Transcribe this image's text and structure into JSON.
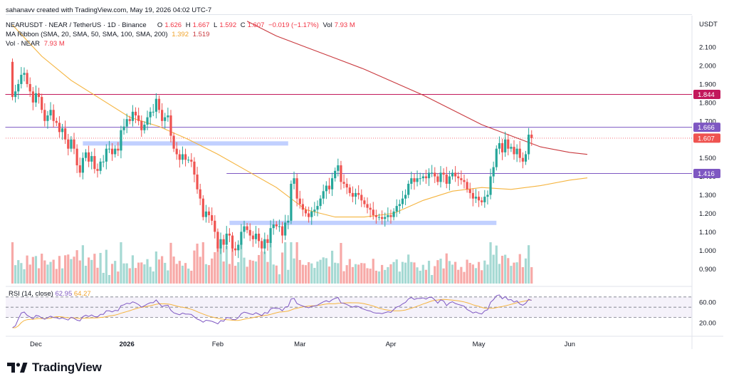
{
  "header": {
    "credit": "sahanavv created with TradingView.com, May 19, 2026 04:02 UTC-7",
    "symbol": "NEARUSDT · NEAR / TetherUS · 1D · Binance",
    "o_label": "O",
    "o": "1.626",
    "h_label": "H",
    "h": "1.667",
    "l_label": "L",
    "l": "1.592",
    "c_label": "C",
    "c": "1.607",
    "change": "−0.019 (−1.17%)",
    "vol_label": "Vol",
    "vol": "7.93 M",
    "ma_label": "MA Ribbon (SMA, 20, SMA, 50, SMA, 100, SMA, 200)",
    "ma1": "1.392",
    "ma2": "1.519",
    "volume_label": "Vol · NEAR",
    "volume_value": "7.93 M"
  },
  "rsi": {
    "label": "RSI (14, close)",
    "value": "62.95",
    "ma_value": "64.27",
    "levels": [
      70,
      50,
      30
    ],
    "range": [
      10,
      85
    ]
  },
  "footer": {
    "brand": "TradingView"
  },
  "colors": {
    "up": "#26a69a",
    "down": "#ef5350",
    "up_vol": "#a5d9d3",
    "down_vol": "#f7a9a7",
    "sma_fast": "#f5b43f",
    "sma_slow": "#c9393e",
    "resistance": "#c2185b",
    "level": "#7e57c2",
    "zone": "#b6c8ff",
    "rsi": "#7e57c2",
    "rsi_ma": "#f5b43f"
  },
  "chart_data": {
    "type": "candlestick",
    "title": "NEARUSDT · NEAR / TetherUS · 1D · Binance",
    "y_unit": "USDT",
    "ylim": [
      0.82,
      2.27
    ],
    "y_ticks": [
      "2.100",
      "2.000",
      "1.900",
      "1.800",
      "1.700",
      "1.600",
      "1.500",
      "1.400",
      "1.300",
      "1.200",
      "1.100",
      "1.000",
      "0.900"
    ],
    "x_ticks": [
      {
        "label": "Dec",
        "index": 8
      },
      {
        "label": "2026",
        "index": 39
      },
      {
        "label": "Feb",
        "index": 70
      },
      {
        "label": "Mar",
        "index": 98
      },
      {
        "label": "Apr",
        "index": 129
      },
      {
        "label": "May",
        "index": 159
      },
      {
        "label": "Jun",
        "index": 190
      }
    ],
    "start_price": 2.02,
    "closes": [
      1.83,
      1.86,
      1.9,
      1.95,
      1.96,
      1.9,
      1.86,
      1.8,
      1.85,
      1.83,
      1.76,
      1.7,
      1.73,
      1.76,
      1.7,
      1.69,
      1.64,
      1.66,
      1.6,
      1.55,
      1.6,
      1.55,
      1.46,
      1.42,
      1.5,
      1.53,
      1.48,
      1.51,
      1.44,
      1.43,
      1.48,
      1.48,
      1.55,
      1.55,
      1.52,
      1.55,
      1.54,
      1.65,
      1.67,
      1.71,
      1.7,
      1.75,
      1.73,
      1.7,
      1.65,
      1.68,
      1.72,
      1.75,
      1.75,
      1.82,
      1.76,
      1.7,
      1.72,
      1.73,
      1.62,
      1.55,
      1.52,
      1.49,
      1.52,
      1.49,
      1.49,
      1.48,
      1.41,
      1.33,
      1.28,
      1.18,
      1.21,
      1.19,
      1.16,
      1.1,
      1.01,
      1.06,
      1.03,
      1.09,
      1.08,
      1.01,
      1.0,
      1.03,
      1.1,
      1.13,
      1.11,
      1.08,
      1.06,
      1.09,
      1.05,
      1.01,
      1.06,
      1.04,
      1.12,
      1.14,
      1.13,
      1.13,
      1.08,
      1.15,
      1.16,
      1.36,
      1.39,
      1.28,
      1.25,
      1.22,
      1.2,
      1.18,
      1.21,
      1.22,
      1.24,
      1.28,
      1.32,
      1.35,
      1.33,
      1.39,
      1.43,
      1.46,
      1.37,
      1.36,
      1.34,
      1.31,
      1.29,
      1.31,
      1.3,
      1.27,
      1.25,
      1.23,
      1.22,
      1.19,
      1.18,
      1.18,
      1.17,
      1.18,
      1.19,
      1.18,
      1.21,
      1.24,
      1.25,
      1.28,
      1.3,
      1.36,
      1.39,
      1.37,
      1.39,
      1.39,
      1.4,
      1.39,
      1.42,
      1.42,
      1.4,
      1.37,
      1.42,
      1.41,
      1.36,
      1.4,
      1.42,
      1.4,
      1.39,
      1.38,
      1.37,
      1.33,
      1.31,
      1.28,
      1.29,
      1.27,
      1.26,
      1.29,
      1.3,
      1.4,
      1.45,
      1.55,
      1.58,
      1.53,
      1.6,
      1.55,
      1.56,
      1.52,
      1.55,
      1.5,
      1.48,
      1.52,
      1.626,
      1.607
    ],
    "sma_fast": {
      "name": "SMA",
      "points": [
        [
          0,
          2.22
        ],
        [
          10,
          2.05
        ],
        [
          20,
          1.92
        ],
        [
          30,
          1.82
        ],
        [
          40,
          1.72
        ],
        [
          50,
          1.67
        ],
        [
          60,
          1.6
        ],
        [
          70,
          1.52
        ],
        [
          80,
          1.43
        ],
        [
          90,
          1.34
        ],
        [
          100,
          1.22
        ],
        [
          110,
          1.18
        ],
        [
          120,
          1.18
        ],
        [
          130,
          1.2
        ],
        [
          140,
          1.27
        ],
        [
          150,
          1.32
        ],
        [
          160,
          1.34
        ],
        [
          170,
          1.33
        ],
        [
          175,
          1.34
        ],
        [
          180,
          1.35
        ],
        [
          190,
          1.38
        ],
        [
          196,
          1.392
        ]
      ]
    },
    "sma_slow": {
      "name": "SMA",
      "points": [
        [
          80,
          2.24
        ],
        [
          90,
          2.16
        ],
        [
          100,
          2.1
        ],
        [
          110,
          2.04
        ],
        [
          120,
          1.98
        ],
        [
          130,
          1.91
        ],
        [
          140,
          1.84
        ],
        [
          150,
          1.76
        ],
        [
          160,
          1.68
        ],
        [
          170,
          1.62
        ],
        [
          180,
          1.56
        ],
        [
          190,
          1.53
        ],
        [
          196,
          1.519
        ]
      ]
    },
    "h_levels": [
      {
        "value": 1.844,
        "label": "1.844",
        "type": "resistance",
        "from_index": 0
      },
      {
        "value": 1.666,
        "label": "1.666",
        "type": "level",
        "from_index": 0
      },
      {
        "value": 1.416,
        "label": "1.416",
        "type": "level",
        "from_index": 73
      },
      {
        "value": 1.607,
        "label": "1.607",
        "type": "last"
      }
    ],
    "zones": [
      {
        "from_index": 24,
        "to_index": 94,
        "low": 1.575,
        "high": 1.59
      },
      {
        "from_index": 74,
        "to_index": 165,
        "low": 1.143,
        "high": 1.16
      }
    ],
    "volume": {
      "last": "7.93 M"
    }
  }
}
